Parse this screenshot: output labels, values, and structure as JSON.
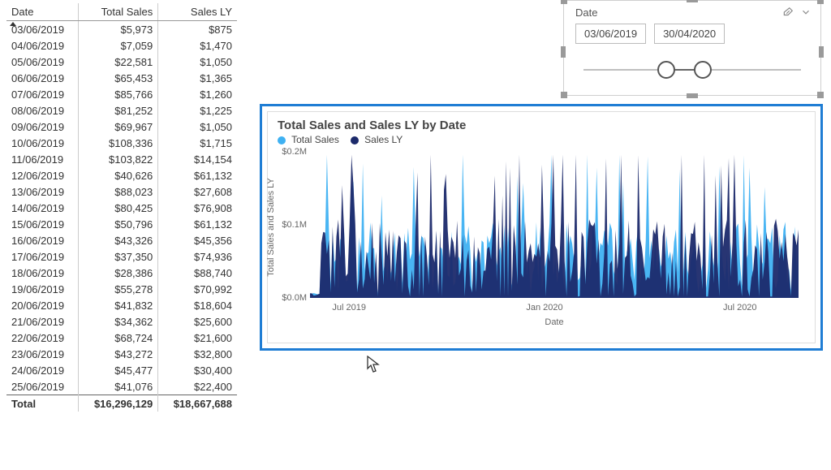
{
  "table": {
    "columns": [
      "Date",
      "Total Sales",
      "Sales LY"
    ],
    "sort_column_index": 0,
    "sort_direction": "asc",
    "column_align": [
      "left",
      "right",
      "right"
    ],
    "header_fontsize": 13,
    "body_fontsize": 13,
    "border_color": "#cccccc",
    "rows": [
      [
        "03/06/2019",
        "$5,973",
        "$875"
      ],
      [
        "04/06/2019",
        "$7,059",
        "$1,470"
      ],
      [
        "05/06/2019",
        "$22,581",
        "$1,050"
      ],
      [
        "06/06/2019",
        "$65,453",
        "$1,365"
      ],
      [
        "07/06/2019",
        "$85,766",
        "$1,260"
      ],
      [
        "08/06/2019",
        "$81,252",
        "$1,225"
      ],
      [
        "09/06/2019",
        "$69,967",
        "$1,050"
      ],
      [
        "10/06/2019",
        "$108,336",
        "$1,715"
      ],
      [
        "11/06/2019",
        "$103,822",
        "$14,154"
      ],
      [
        "12/06/2019",
        "$40,626",
        "$61,132"
      ],
      [
        "13/06/2019",
        "$88,023",
        "$27,608"
      ],
      [
        "14/06/2019",
        "$80,425",
        "$76,908"
      ],
      [
        "15/06/2019",
        "$50,796",
        "$61,132"
      ],
      [
        "16/06/2019",
        "$43,326",
        "$45,356"
      ],
      [
        "17/06/2019",
        "$37,350",
        "$74,936"
      ],
      [
        "18/06/2019",
        "$28,386",
        "$88,740"
      ],
      [
        "19/06/2019",
        "$55,278",
        "$70,992"
      ],
      [
        "20/06/2019",
        "$41,832",
        "$18,604"
      ],
      [
        "21/06/2019",
        "$34,362",
        "$25,600"
      ],
      [
        "22/06/2019",
        "$68,724",
        "$21,600"
      ],
      [
        "23/06/2019",
        "$43,272",
        "$32,800"
      ],
      [
        "24/06/2019",
        "$45,477",
        "$30,400"
      ],
      [
        "25/06/2019",
        "$41,076",
        "$22,400"
      ]
    ],
    "total_row": [
      "Total",
      "$16,296,129",
      "$18,667,688"
    ]
  },
  "slicer": {
    "title": "Date",
    "title_fontsize": 13,
    "start": "03/06/2019",
    "end": "30/04/2020",
    "box_border_color": "#bbbbbb",
    "thumb_border_color": "#555555",
    "track_color": "#bfbfbf",
    "fill_color": "#666666",
    "range_pct": {
      "start": 38,
      "end": 55
    },
    "selection_handle_color": "#9a9a9a"
  },
  "chart": {
    "type": "area",
    "title": "Total Sales and Sales LY by Date",
    "title_fontsize": 15,
    "title_color": "#444444",
    "selection_border_color": "#1f7dd4",
    "background_color": "#ffffff",
    "legend": [
      {
        "label": "Total Sales",
        "color": "#3fb1f2"
      },
      {
        "label": "Sales LY",
        "color": "#1c2a6b"
      }
    ],
    "y_axis": {
      "label": "Total Sales and Sales LY",
      "ticks": [
        {
          "value": 0.0,
          "label": "$0.0M"
        },
        {
          "value": 0.1,
          "label": "$0.1M"
        },
        {
          "value": 0.2,
          "label": "$0.2M"
        }
      ],
      "min": 0.0,
      "max": 0.2,
      "label_fontsize": 11
    },
    "x_axis": {
      "label": "Date",
      "ticks": [
        {
          "pos_pct": 8,
          "label": "Jul 2019"
        },
        {
          "pos_pct": 48,
          "label": "Jan 2020"
        },
        {
          "pos_pct": 88,
          "label": "Jul 2020"
        }
      ],
      "label_fontsize": 11
    },
    "series_opacity": 0.95,
    "n_points": 260,
    "series": {
      "total_sales": {
        "color": "#3fb1f2",
        "mean": 0.055,
        "jitter": 0.05,
        "spike": 0.16
      },
      "sales_ly": {
        "color": "#1c2a6b",
        "mean": 0.05,
        "jitter": 0.06,
        "spike": 0.18
      }
    }
  }
}
